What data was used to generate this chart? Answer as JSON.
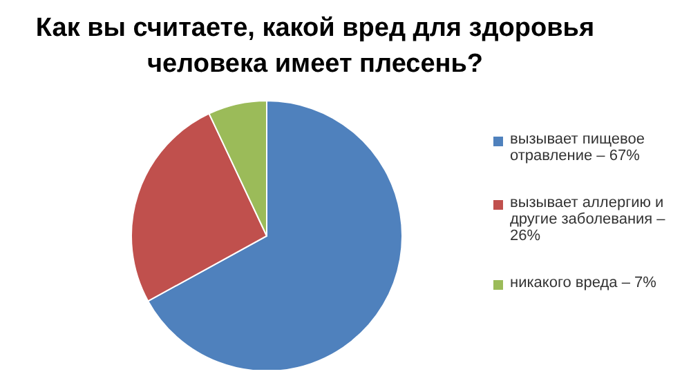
{
  "chart_data": {
    "type": "pie",
    "title": "Как вы считаете, какой вред для здоровья человека имеет плесень?",
    "categories": [
      "вызывает пищевое отравление – 67%",
      "вызывает аллергию и другие заболевания – 26%",
      "никакого вреда – 7%"
    ],
    "values": [
      67,
      26,
      7
    ],
    "colors": [
      "#4f81bd",
      "#c0504d",
      "#9bbb59"
    ],
    "legend": "right"
  }
}
